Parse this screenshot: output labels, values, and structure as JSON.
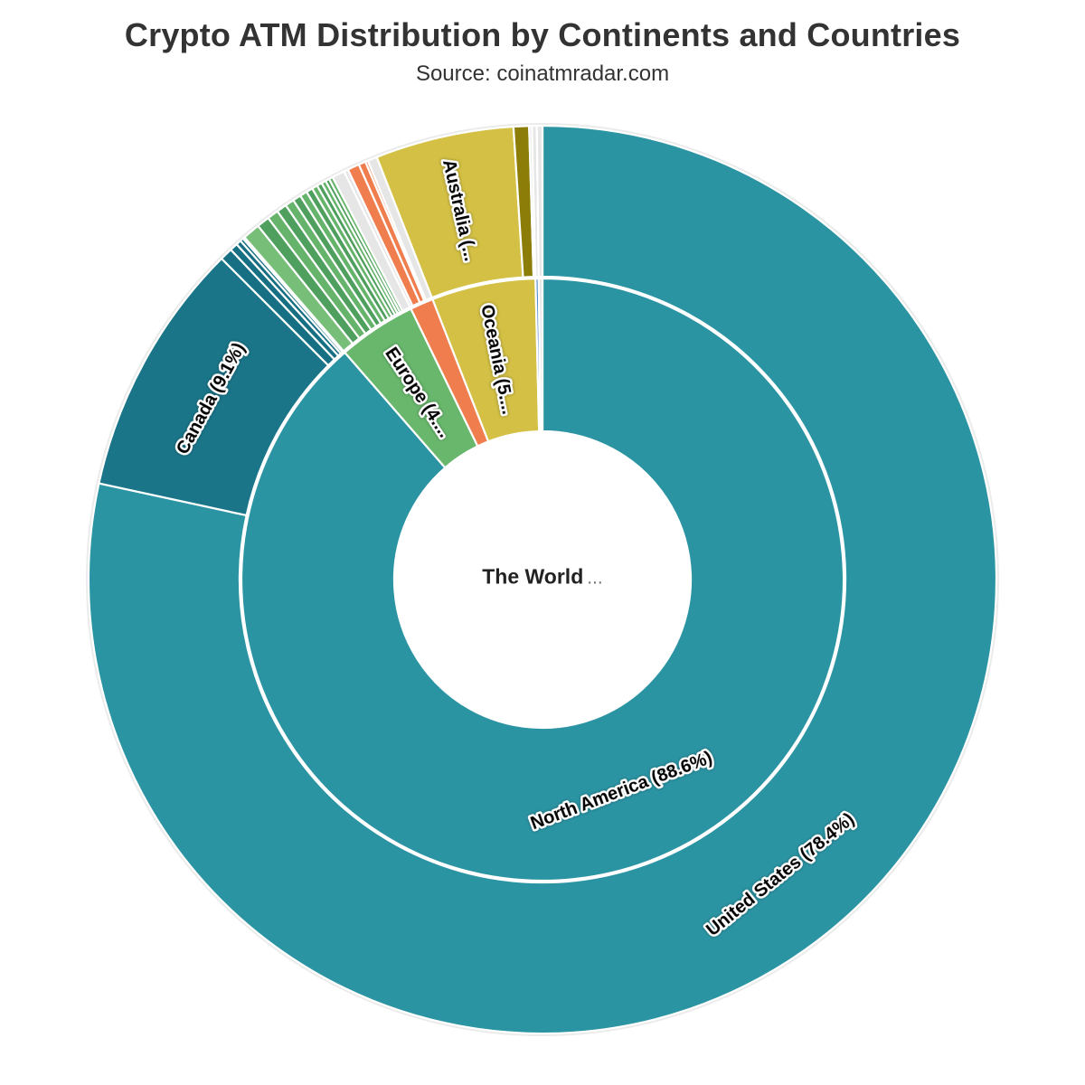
{
  "chart_data": {
    "type": "sunburst",
    "title": "Crypto ATM Distribution by Continents and Countries",
    "subtitle": "Source: coinatmradar.com",
    "center_label": {
      "main": "The World",
      "suffix": "..."
    },
    "units": "percent of world crypto ATMs",
    "start_angle_deg": 0,
    "direction": "clockwise",
    "legend": "none",
    "background_color": "#ffffff",
    "separator_color": "#ffffff",
    "rings": [
      {
        "name": "continents",
        "segments": [
          {
            "id": "north-america",
            "label": "North America (88.6%)",
            "value_pct": 88.6,
            "color": "#2b94a3"
          },
          {
            "id": "europe",
            "label": "Europe (4....",
            "value_pct": 4.2,
            "color": "#68b76c"
          },
          {
            "id": "asia",
            "label": "",
            "value_pct": 1.25,
            "color": "#ef7d4e"
          },
          {
            "id": "oceania",
            "label": "Oceania (5....",
            "value_pct": 5.58,
            "color": "#d3c044"
          },
          {
            "id": "south-america",
            "label": "",
            "value_pct": 0.17,
            "color": "#5a8ed1"
          },
          {
            "id": "africa",
            "label": "",
            "value_pct": 0.2,
            "color": "#e6e6e6"
          }
        ]
      },
      {
        "name": "countries",
        "segments": [
          {
            "id": "united-states",
            "label": "United States (78.4%)",
            "value_pct": 78.4,
            "color": "#2b94a3"
          },
          {
            "id": "canada",
            "label": "Canada (9.1%)",
            "value_pct": 9.1,
            "color": "#1a7589"
          },
          {
            "id": "north-america-other-1",
            "label": "",
            "value_pct": 0.45,
            "color": "#176f83"
          },
          {
            "id": "north-america-other-2",
            "label": "",
            "value_pct": 0.28,
            "color": "#176f83"
          },
          {
            "id": "north-america-other-3",
            "label": "",
            "value_pct": 0.18,
            "color": "#176f83"
          },
          {
            "id": "north-america-other-4",
            "label": "",
            "value_pct": 0.12,
            "color": "#176f83"
          },
          {
            "id": "north-america-other-5",
            "label": "",
            "value_pct": 0.07,
            "color": "#176f83"
          },
          {
            "id": "europe-country-1",
            "label": "",
            "value_pct": 0.62,
            "color": "#77bf79"
          },
          {
            "id": "europe-country-2",
            "label": "",
            "value_pct": 0.45,
            "color": "#4f9f5e"
          },
          {
            "id": "europe-country-3",
            "label": "",
            "value_pct": 0.4,
            "color": "#66b46b"
          },
          {
            "id": "europe-country-4",
            "label": "",
            "value_pct": 0.36,
            "color": "#4f9f5e"
          },
          {
            "id": "europe-country-5",
            "label": "",
            "value_pct": 0.32,
            "color": "#66b46b"
          },
          {
            "id": "europe-country-6",
            "label": "",
            "value_pct": 0.29,
            "color": "#4f9f5e"
          },
          {
            "id": "europe-country-7",
            "label": "",
            "value_pct": 0.26,
            "color": "#66b46b"
          },
          {
            "id": "europe-country-8",
            "label": "",
            "value_pct": 0.23,
            "color": "#4f9f5e"
          },
          {
            "id": "europe-country-9",
            "label": "",
            "value_pct": 0.2,
            "color": "#66b46b"
          },
          {
            "id": "europe-country-10",
            "label": "",
            "value_pct": 0.18,
            "color": "#4f9f5e"
          },
          {
            "id": "europe-country-11",
            "label": "",
            "value_pct": 0.16,
            "color": "#66b46b"
          },
          {
            "id": "europe-country-12",
            "label": "",
            "value_pct": 0.14,
            "color": "#4f9f5e"
          },
          {
            "id": "europe-country-13",
            "label": "",
            "value_pct": 0.14,
            "color": "#66b46b"
          },
          {
            "id": "europe-other",
            "label": "",
            "value_pct": 0.45,
            "color": "#e6e6e6"
          },
          {
            "id": "asia-other-a",
            "label": "",
            "value_pct": 0.15,
            "color": "#e6e6e6"
          },
          {
            "id": "asia-country-1",
            "label": "",
            "value_pct": 0.42,
            "color": "#ef7d4e"
          },
          {
            "id": "asia-country-2",
            "label": "",
            "value_pct": 0.25,
            "color": "#ef7d4e"
          },
          {
            "id": "asia-country-3",
            "label": "",
            "value_pct": 0.09,
            "color": "#ef7d4e"
          },
          {
            "id": "asia-other-b",
            "label": "",
            "value_pct": 0.34,
            "color": "#e6e6e6"
          },
          {
            "id": "australia",
            "label": "Australia (...",
            "value_pct": 4.93,
            "color": "#d3c044"
          },
          {
            "id": "new-zealand",
            "label": "",
            "value_pct": 0.55,
            "color": "#8b7d08"
          },
          {
            "id": "oceania-other",
            "label": "",
            "value_pct": 0.1,
            "color": "#e6e6e6"
          },
          {
            "id": "south-america-countries",
            "label": "",
            "value_pct": 0.17,
            "color": "#e6e6e6"
          },
          {
            "id": "africa-countries",
            "label": "",
            "value_pct": 0.2,
            "color": "#e6e6e6"
          }
        ]
      }
    ]
  }
}
